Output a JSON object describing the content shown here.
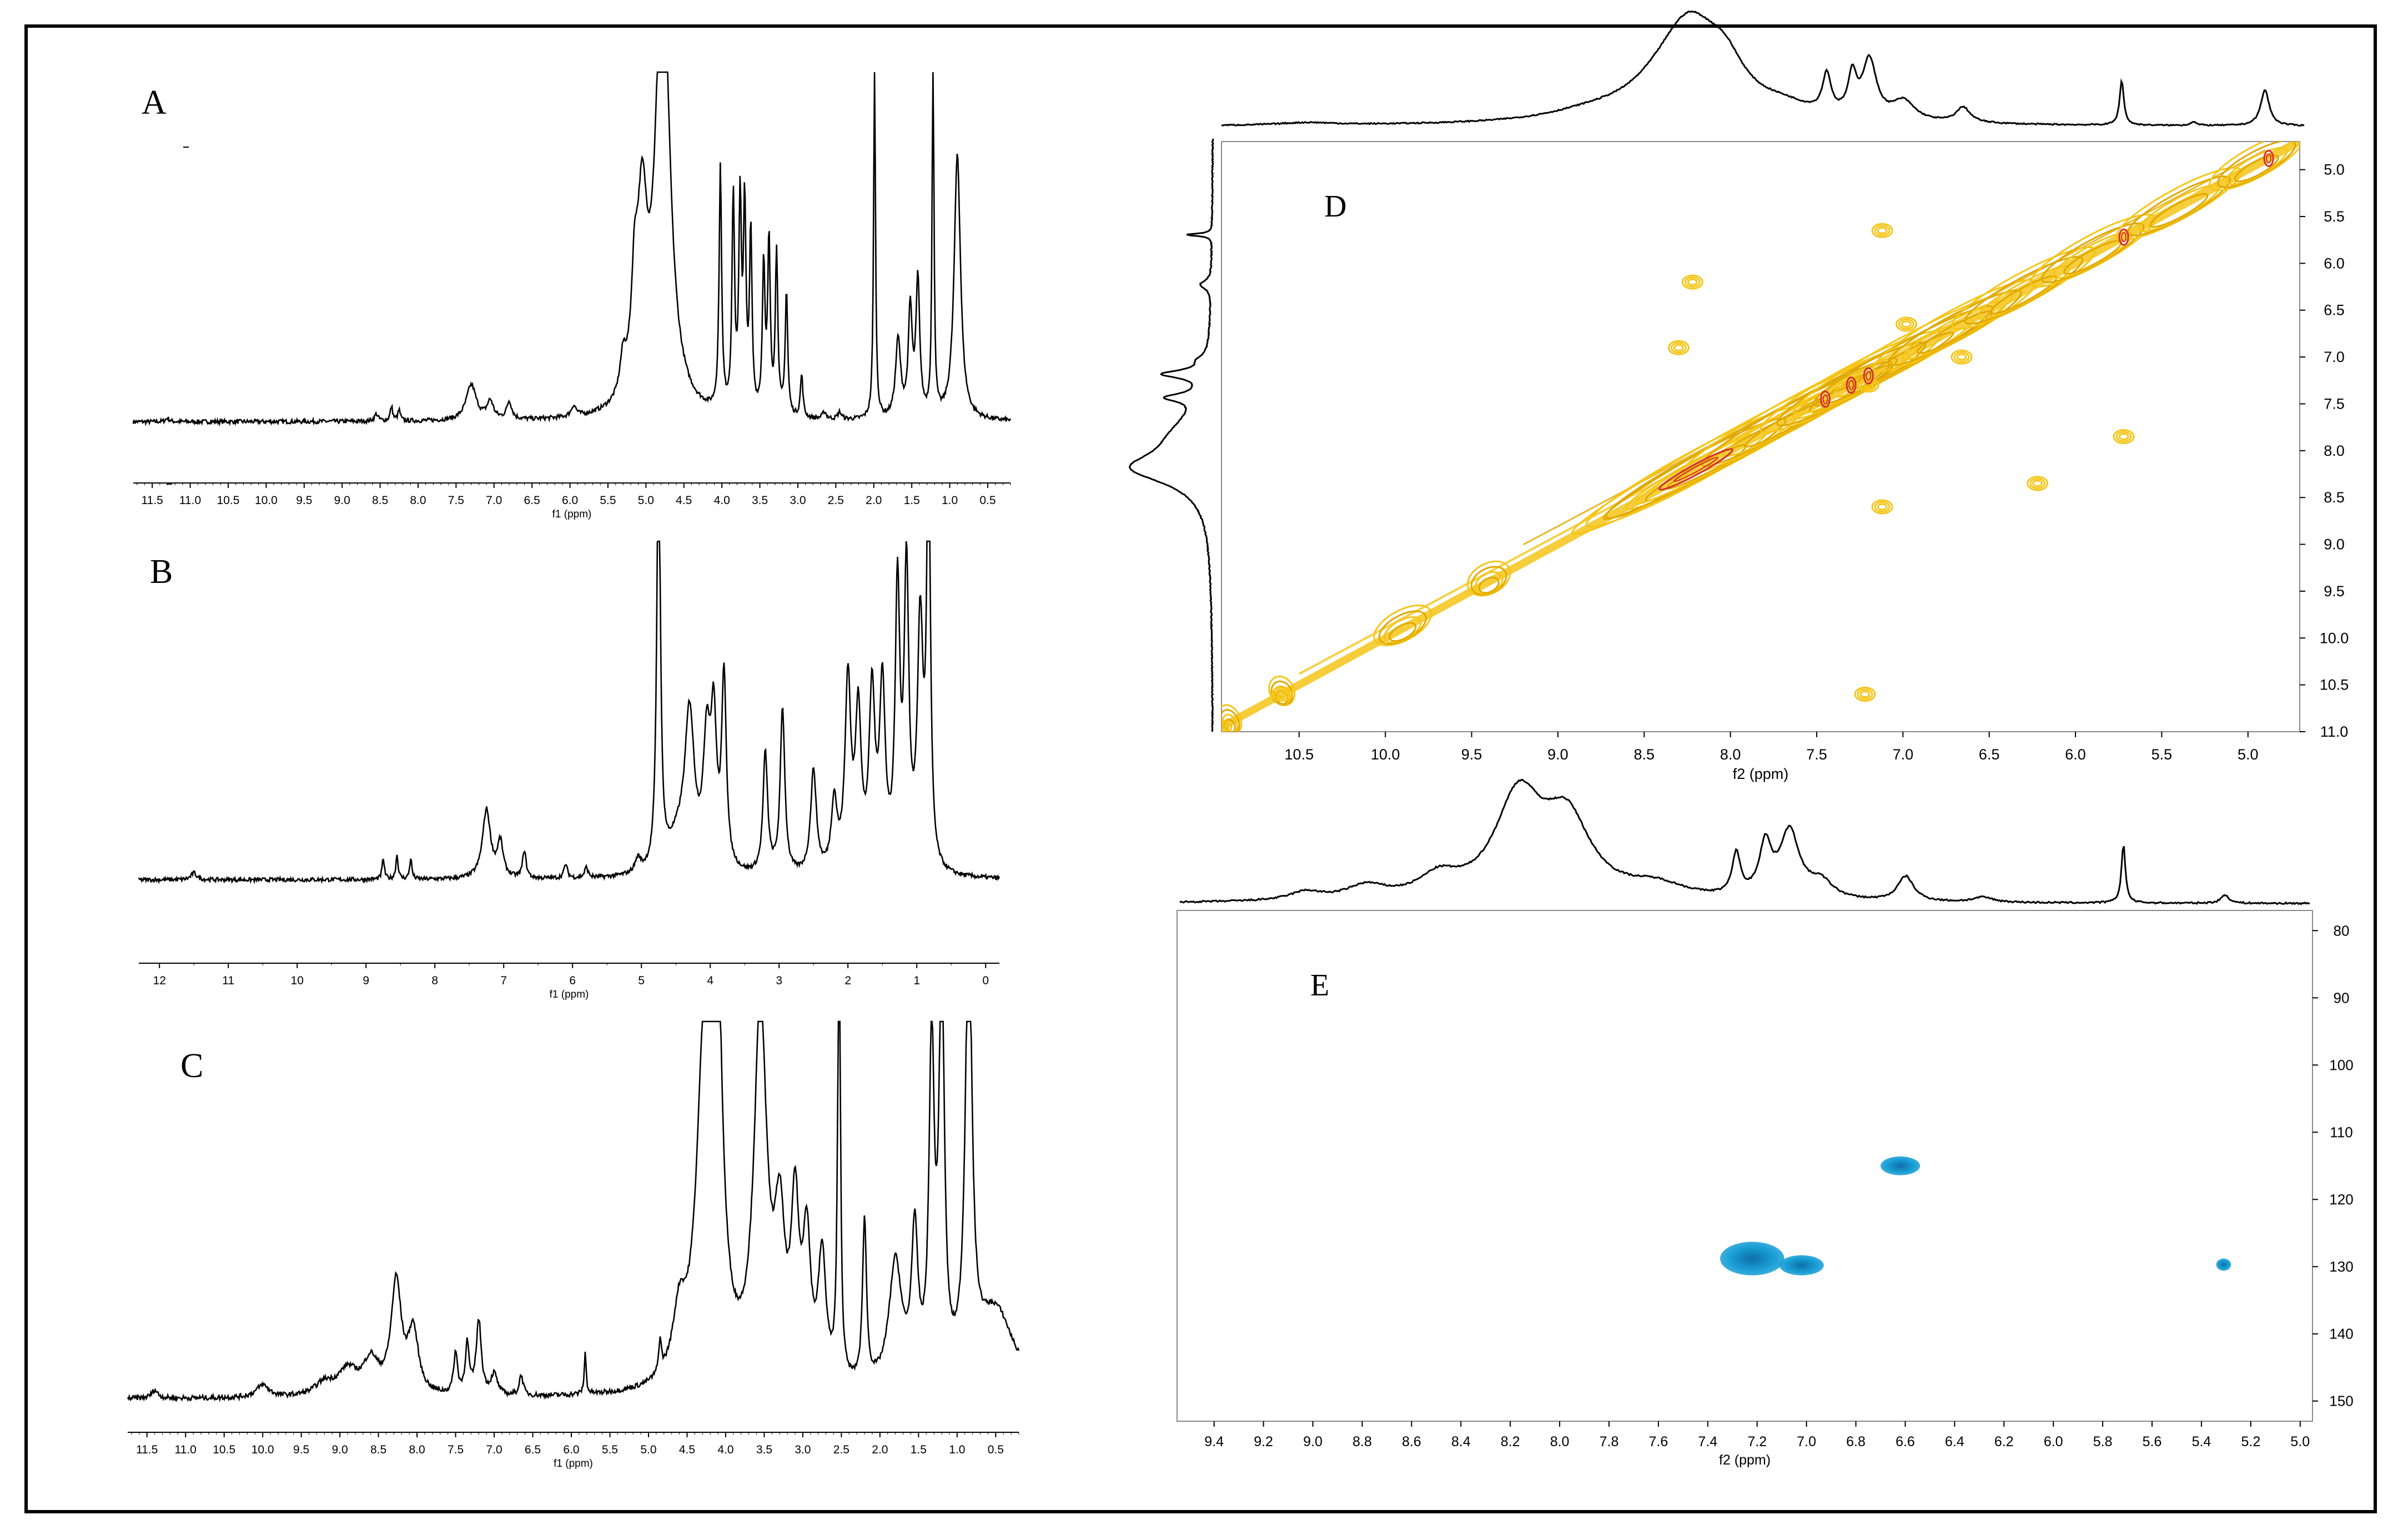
{
  "chart_data": [
    {
      "id": "A",
      "type": "line",
      "panel_label": "A",
      "xlabel": "f1 (ppm)",
      "xlim": [
        11.75,
        0.2
      ],
      "ticks": [
        "11.5",
        "11.0",
        "10.5",
        "10.0",
        "9.5",
        "9.0",
        "8.5",
        "8.0",
        "7.5",
        "7.0",
        "6.5",
        "6.0",
        "5.5",
        "5.0",
        "4.5",
        "4.0",
        "3.5",
        "3.0",
        "2.5",
        "2.0",
        "1.5",
        "1.0",
        "0.5"
      ],
      "baseline": 0.06,
      "noise": 0.003,
      "peaks": [
        [
          11.3,
          0.01,
          0.03
        ],
        [
          8.55,
          0.02,
          0.03
        ],
        [
          8.35,
          0.04,
          0.02
        ],
        [
          8.25,
          0.03,
          0.02
        ],
        [
          7.3,
          0.1,
          0.08
        ],
        [
          7.05,
          0.05,
          0.05
        ],
        [
          6.8,
          0.05,
          0.04
        ],
        [
          5.95,
          0.03,
          0.04
        ],
        [
          5.3,
          0.1,
          0.05
        ],
        [
          5.15,
          0.25,
          0.05
        ],
        [
          5.05,
          0.5,
          0.08
        ],
        [
          4.78,
          1.3,
          0.11
        ],
        [
          4.02,
          0.68,
          0.02
        ],
        [
          3.85,
          0.6,
          0.02
        ],
        [
          3.76,
          0.58,
          0.02
        ],
        [
          3.7,
          0.56,
          0.02
        ],
        [
          3.62,
          0.5,
          0.02
        ],
        [
          3.45,
          0.42,
          0.02
        ],
        [
          3.38,
          0.48,
          0.02
        ],
        [
          3.28,
          0.45,
          0.02
        ],
        [
          3.15,
          0.35,
          0.02
        ],
        [
          2.95,
          0.12,
          0.02
        ],
        [
          2.65,
          0.02,
          0.03
        ],
        [
          2.45,
          0.02,
          0.03
        ],
        [
          1.99,
          1.0,
          0.015
        ],
        [
          1.68,
          0.22,
          0.04
        ],
        [
          1.52,
          0.3,
          0.03
        ],
        [
          1.42,
          0.38,
          0.03
        ],
        [
          1.22,
          1.0,
          0.015
        ],
        [
          0.9,
          0.75,
          0.05
        ]
      ]
    },
    {
      "id": "B",
      "type": "line",
      "panel_label": "B",
      "xlabel": "f1 (ppm)",
      "xlim": [
        12.3,
        -0.2
      ],
      "ticks": [
        "12",
        "11",
        "10",
        "9",
        "8",
        "7",
        "6",
        "5",
        "4",
        "3",
        "2",
        "1",
        "0"
      ],
      "baseline": 0.05,
      "noise": 0.003,
      "peaks": [
        [
          11.5,
          0.02,
          0.05
        ],
        [
          8.75,
          0.06,
          0.02
        ],
        [
          8.55,
          0.07,
          0.02
        ],
        [
          8.35,
          0.06,
          0.02
        ],
        [
          7.25,
          0.2,
          0.07
        ],
        [
          7.05,
          0.1,
          0.05
        ],
        [
          6.7,
          0.08,
          0.03
        ],
        [
          6.1,
          0.04,
          0.03
        ],
        [
          5.8,
          0.03,
          0.03
        ],
        [
          5.05,
          0.04,
          0.05
        ],
        [
          4.75,
          1.3,
          0.03
        ],
        [
          4.45,
          0.1,
          0.2
        ],
        [
          4.3,
          0.42,
          0.08
        ],
        [
          4.05,
          0.35,
          0.06
        ],
        [
          3.95,
          0.4,
          0.05
        ],
        [
          3.8,
          0.55,
          0.04
        ],
        [
          3.2,
          0.35,
          0.04
        ],
        [
          2.95,
          0.48,
          0.04
        ],
        [
          2.5,
          0.3,
          0.05
        ],
        [
          2.2,
          0.2,
          0.05
        ],
        [
          2.0,
          0.55,
          0.05
        ],
        [
          1.85,
          0.45,
          0.05
        ],
        [
          1.65,
          0.5,
          0.05
        ],
        [
          1.5,
          0.52,
          0.05
        ],
        [
          1.28,
          0.8,
          0.04
        ],
        [
          1.15,
          0.85,
          0.04
        ],
        [
          0.95,
          0.7,
          0.05
        ],
        [
          0.83,
          1.3,
          0.03
        ]
      ]
    },
    {
      "id": "C",
      "type": "line",
      "panel_label": "C",
      "xlabel": "f1 (ppm)",
      "xlim": [
        11.75,
        0.2
      ],
      "ticks": [
        "11.5",
        "11.0",
        "10.5",
        "10.0",
        "9.5",
        "9.0",
        "8.5",
        "8.0",
        "7.5",
        "7.0",
        "6.5",
        "6.0",
        "5.5",
        "5.0",
        "4.5",
        "4.0",
        "3.5",
        "3.0",
        "2.5",
        "2.0",
        "1.5",
        "1.0",
        "0.5"
      ],
      "baseline": 0.04,
      "noise": 0.003,
      "peaks": [
        [
          11.4,
          0.02,
          0.05
        ],
        [
          10.0,
          0.03,
          0.1
        ],
        [
          9.2,
          0.03,
          0.15
        ],
        [
          8.9,
          0.06,
          0.15
        ],
        [
          8.6,
          0.08,
          0.12
        ],
        [
          8.27,
          0.27,
          0.08
        ],
        [
          8.05,
          0.15,
          0.08
        ],
        [
          7.5,
          0.1,
          0.03
        ],
        [
          7.35,
          0.12,
          0.03
        ],
        [
          7.2,
          0.18,
          0.04
        ],
        [
          7.0,
          0.05,
          0.05
        ],
        [
          6.65,
          0.05,
          0.03
        ],
        [
          5.82,
          0.1,
          0.015
        ],
        [
          4.85,
          0.08,
          0.02
        ],
        [
          4.6,
          0.15,
          0.1
        ],
        [
          4.28,
          0.7,
          0.12
        ],
        [
          4.13,
          1.2,
          0.08
        ],
        [
          3.55,
          0.9,
          0.1
        ],
        [
          3.3,
          0.35,
          0.08
        ],
        [
          3.1,
          0.4,
          0.06
        ],
        [
          2.95,
          0.33,
          0.06
        ],
        [
          2.75,
          0.3,
          0.06
        ],
        [
          2.53,
          1.2,
          0.02
        ],
        [
          2.2,
          0.4,
          0.03
        ],
        [
          1.8,
          0.3,
          0.1
        ],
        [
          1.55,
          0.35,
          0.05
        ],
        [
          1.33,
          0.8,
          0.04
        ],
        [
          1.2,
          1.0,
          0.04
        ],
        [
          0.85,
          1.1,
          0.05
        ],
        [
          0.5,
          0.2,
          0.3
        ]
      ]
    },
    {
      "id": "D",
      "type": "contour",
      "panel_label": "D",
      "xlabel": "f2 (ppm)",
      "xlim": [
        10.95,
        4.7
      ],
      "ylim": [
        4.7,
        11.0
      ],
      "xticks": [
        "10.5",
        "10.0",
        "9.5",
        "9.0",
        "8.5",
        "8.0",
        "7.5",
        "7.0",
        "6.5",
        "6.0",
        "5.5",
        "5.0"
      ],
      "yticks": [
        "5.0",
        "5.5",
        "6.0",
        "6.5",
        "7.0",
        "7.5",
        "8.0",
        "8.5",
        "9.0",
        "9.5",
        "10.0",
        "10.5",
        "11.0"
      ],
      "colors": {
        "contour": "#f5c518",
        "contour_edge": "#e0a800",
        "core": "#d32f2f"
      },
      "diagonal_blobs": [
        [
          8.2,
          0.55
        ],
        [
          7.9,
          0.9
        ],
        [
          7.6,
          0.6
        ],
        [
          7.3,
          0.45
        ],
        [
          7.0,
          0.55
        ],
        [
          6.7,
          0.4
        ],
        [
          6.3,
          0.35
        ],
        [
          5.9,
          0.3
        ],
        [
          5.4,
          0.3
        ],
        [
          4.95,
          0.22
        ],
        [
          9.9,
          0.12
        ],
        [
          9.4,
          0.08
        ],
        [
          10.6,
          0.03
        ],
        [
          10.9,
          0.02
        ]
      ],
      "cores": [
        [
          8.2,
          8.2
        ],
        [
          7.45,
          7.45
        ],
        [
          7.3,
          7.3
        ],
        [
          7.2,
          7.2
        ],
        [
          5.72,
          5.72
        ],
        [
          4.88,
          4.88
        ]
      ],
      "cross_peaks": [
        [
          8.22,
          6.2
        ],
        [
          7.12,
          5.65
        ],
        [
          6.66,
          7.0
        ],
        [
          6.98,
          6.65
        ],
        [
          5.72,
          7.85
        ],
        [
          6.22,
          8.35
        ],
        [
          7.2,
          7.3
        ],
        [
          10.6,
          10.6
        ],
        [
          7.22,
          10.6
        ],
        [
          8.3,
          6.9
        ],
        [
          7.12,
          8.6
        ],
        [
          10.95,
          10.95
        ]
      ],
      "projection_top": {
        "xlim": [
          11.0,
          4.65
        ],
        "peaks": [
          [
            10.5,
            0.02,
            0.2
          ],
          [
            8.85,
            0.05,
            0.3
          ],
          [
            8.35,
            0.3,
            0.3
          ],
          [
            8.25,
            0.5,
            0.2
          ],
          [
            8.05,
            0.3,
            0.15
          ],
          [
            7.7,
            0.08,
            0.2
          ],
          [
            7.45,
            0.3,
            0.03
          ],
          [
            7.3,
            0.3,
            0.03
          ],
          [
            7.2,
            0.45,
            0.05
          ],
          [
            7.0,
            0.15,
            0.08
          ],
          [
            6.65,
            0.12,
            0.05
          ],
          [
            5.72,
            0.35,
            0.015
          ],
          [
            5.3,
            0.03,
            0.02
          ],
          [
            4.88,
            0.28,
            0.03
          ]
        ]
      },
      "projection_left": {
        "ylim": [
          4.7,
          11.0
        ],
        "peaks": [
          [
            5.72,
            0.28,
            0.015
          ],
          [
            6.25,
            0.12,
            0.05
          ],
          [
            7.05,
            0.08,
            0.05
          ],
          [
            7.2,
            0.45,
            0.05
          ],
          [
            7.45,
            0.35,
            0.05
          ],
          [
            8.2,
            0.75,
            0.2
          ],
          [
            7.85,
            0.3,
            0.3
          ]
        ]
      }
    },
    {
      "id": "E",
      "type": "heatmap",
      "panel_label": "E",
      "xlabel": "f2 (ppm)",
      "xlim": [
        9.55,
        4.95
      ],
      "ylim": [
        77,
        153
      ],
      "xticks": [
        "9.4",
        "9.2",
        "9.0",
        "8.8",
        "8.6",
        "8.4",
        "8.2",
        "8.0",
        "7.8",
        "7.6",
        "7.4",
        "7.2",
        "7.0",
        "6.8",
        "6.6",
        "6.4",
        "6.2",
        "6.0",
        "5.8",
        "5.6",
        "5.4",
        "5.2",
        "5.0"
      ],
      "yticks": [
        "80",
        "90",
        "100",
        "110",
        "120",
        "130",
        "140",
        "150"
      ],
      "colors": {
        "spot": "#1a9fd6",
        "spot_core": "#0d6fa8"
      },
      "spots": [
        [
          6.62,
          115,
          0.08,
          1.4
        ],
        [
          7.22,
          128.8,
          0.13,
          2.5
        ],
        [
          7.02,
          129.8,
          0.09,
          1.5
        ],
        [
          5.31,
          129.7,
          0.03,
          0.9
        ]
      ],
      "projection_top": {
        "xlim": [
          9.62,
          4.95
        ],
        "peaks": [
          [
            9.1,
            0.05,
            0.08
          ],
          [
            8.85,
            0.08,
            0.1
          ],
          [
            8.55,
            0.12,
            0.1
          ],
          [
            8.22,
            0.6,
            0.12
          ],
          [
            8.02,
            0.45,
            0.12
          ],
          [
            7.65,
            0.08,
            0.15
          ],
          [
            7.32,
            0.25,
            0.02
          ],
          [
            7.2,
            0.3,
            0.03
          ],
          [
            7.1,
            0.4,
            0.05
          ],
          [
            6.97,
            0.1,
            0.06
          ],
          [
            6.62,
            0.15,
            0.04
          ],
          [
            6.3,
            0.03,
            0.05
          ],
          [
            5.72,
            0.35,
            0.01
          ],
          [
            5.3,
            0.05,
            0.02
          ]
        ]
      }
    }
  ]
}
